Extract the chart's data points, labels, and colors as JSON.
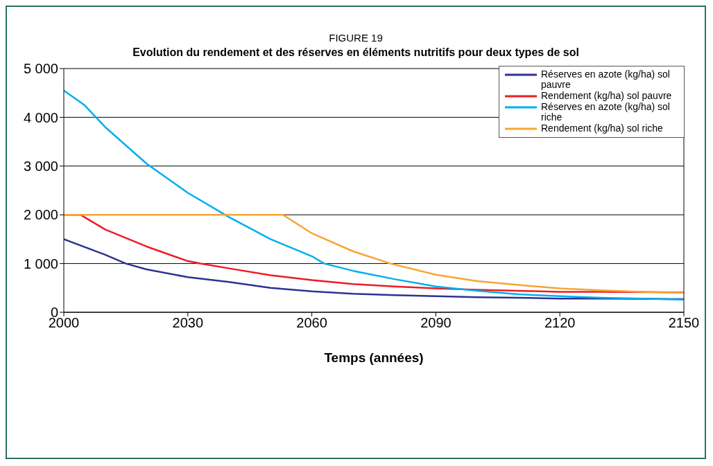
{
  "chart_data": {
    "type": "line",
    "title": "FIGURE 19",
    "subtitle": "Evolution du rendement et des réserves en éléments nutritifs pour deux types de sol",
    "xlabel": "Temps (années)",
    "xlim": [
      2000,
      2150
    ],
    "xticks": [
      2000,
      2030,
      2060,
      2090,
      2120,
      2150
    ],
    "ylim": [
      0,
      5000
    ],
    "yticks": [
      {
        "value": 0,
        "label": "0"
      },
      {
        "value": 1000,
        "label": "1 000"
      },
      {
        "value": 2000,
        "label": "2 000"
      },
      {
        "value": 3000,
        "label": "3 000"
      },
      {
        "value": 4000,
        "label": "4 000"
      },
      {
        "value": 5000,
        "label": "5 000"
      }
    ],
    "grid": "y",
    "legend": "top right",
    "marker": "none",
    "line_style": "solid",
    "series": [
      {
        "name": "Réserves en azote (kg/ha) sol pauvre",
        "color": "#2e3192",
        "x": [
          2000,
          2010,
          2015,
          2020,
          2030,
          2040,
          2050,
          2060,
          2070,
          2080,
          2090,
          2100,
          2110,
          2120,
          2130,
          2150
        ],
        "values": [
          1500,
          1180,
          1000,
          880,
          720,
          620,
          500,
          430,
          380,
          350,
          330,
          310,
          300,
          280,
          280,
          270
        ]
      },
      {
        "name": "Rendement (kg/ha) sol pauvre",
        "color": "#ed1c24",
        "x": [
          2000,
          2004,
          2010,
          2020,
          2030,
          2033,
          2040,
          2050,
          2060,
          2070,
          2080,
          2090,
          2100,
          2110,
          2120,
          2130,
          2150
        ],
        "values": [
          2000,
          2000,
          1700,
          1350,
          1050,
          1000,
          900,
          760,
          660,
          580,
          530,
          490,
          460,
          440,
          420,
          420,
          410
        ]
      },
      {
        "name": "Réserves en azote (kg/ha) sol riche",
        "color": "#00aeef",
        "x": [
          2000,
          2005,
          2010,
          2020,
          2030,
          2039,
          2040,
          2050,
          2060,
          2063,
          2070,
          2080,
          2090,
          2100,
          2110,
          2120,
          2130,
          2140,
          2150
        ],
        "values": [
          4550,
          4250,
          3800,
          3050,
          2450,
          2000,
          1950,
          1500,
          1150,
          1000,
          850,
          680,
          530,
          440,
          370,
          330,
          300,
          280,
          260
        ]
      },
      {
        "name": "Rendement (kg/ha) sol riche",
        "color": "#f7a531",
        "x": [
          2000,
          2053,
          2060,
          2070,
          2079,
          2090,
          2100,
          2110,
          2120,
          2130,
          2140,
          2150
        ],
        "values": [
          2000,
          2000,
          1620,
          1250,
          1000,
          770,
          640,
          560,
          490,
          450,
          420,
          400
        ]
      }
    ]
  }
}
